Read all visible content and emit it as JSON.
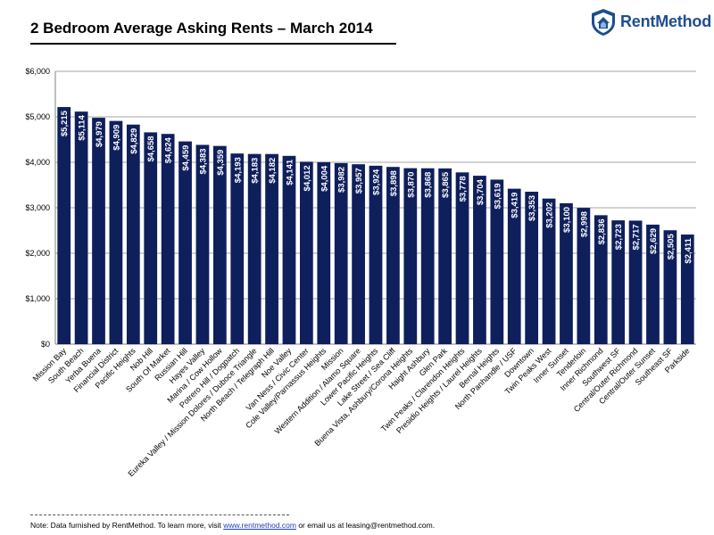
{
  "title": "2 Bedroom Average Asking Rents – March 2014",
  "logo": {
    "text": "RentMethod",
    "icon": "shield-house-icon",
    "color": "#1d4e8f"
  },
  "footer": {
    "prefix": "Note: Data furnished by RentMethod. To learn more, visit ",
    "link": "www.rentmethod.com",
    "middle": " or email us at leasing@rentmethod.com."
  },
  "chart_data": {
    "type": "bar",
    "bar_color": "#0f1f5c",
    "label_color": "#ffffff",
    "grid": true,
    "ylim": [
      0,
      6000
    ],
    "yticks": [
      0,
      1000,
      2000,
      3000,
      4000,
      5000,
      6000
    ],
    "ytick_labels": [
      "$0",
      "$1,000",
      "$2,000",
      "$3,000",
      "$4,000",
      "$5,000",
      "$6,000"
    ],
    "categories": [
      "Mission Bay",
      "South Beach",
      "Yerba Buena",
      "Financial District",
      "Pacific Heights",
      "Nob Hill",
      "South Of Market",
      "Russian Hill",
      "Hayes Valley",
      "Marina / Cow Hollow",
      "Potrero Hill / Dogpatch",
      "Eureka Valley / Mission Dolores / Duboce Triangle",
      "North Beach / Telegraph Hill",
      "Noe Valley",
      "Van Ness / Civic Center",
      "Cole Valley/Parnassus Heights",
      "Mission",
      "Western Addition / Alamo Square",
      "Lower Pacific Heights",
      "Lake Street / Sea Cliff",
      "Buena Vista, Ashbury/Corona Heights",
      "Haight Ashbury",
      "Glen Park",
      "Twin Peaks / Clarendon Heights",
      "Presidio Heights / Laurel Heights",
      "Bernal Heights",
      "North Panhandle / USF",
      "Downtown",
      "Twin Peaks West",
      "Inner Sunset",
      "Tenderloin",
      "Inner Richmond",
      "Southwest SF",
      "Central/Outer Richmond",
      "Central/Outer Sunset",
      "Southeast SF",
      "Parkside"
    ],
    "values": [
      5215,
      5114,
      4979,
      4909,
      4829,
      4658,
      4624,
      4459,
      4383,
      4359,
      4193,
      4183,
      4182,
      4141,
      4012,
      4004,
      3982,
      3957,
      3924,
      3898,
      3870,
      3868,
      3865,
      3778,
      3704,
      3619,
      3419,
      3353,
      3202,
      3100,
      2998,
      2836,
      2723,
      2717,
      2629,
      2505,
      2411
    ],
    "value_labels": [
      "$5,215",
      "$5,114",
      "$4,979",
      "$4,909",
      "$4,829",
      "$4,658",
      "$4,624",
      "$4,459",
      "$4,383",
      "$4,359",
      "$4,193",
      "$4,183",
      "$4,182",
      "$4,141",
      "$4,012",
      "$4,004",
      "$3,982",
      "$3,957",
      "$3,924",
      "$3,898",
      "$3,870",
      "$3,868",
      "$3,865",
      "$3,778",
      "$3,704",
      "$3,619",
      "$3,419",
      "$3,353",
      "$3,202",
      "$3,100",
      "$2,998",
      "$2,836",
      "$2,723",
      "$2,717",
      "$2,629",
      "$2,505",
      "$2,411"
    ]
  }
}
